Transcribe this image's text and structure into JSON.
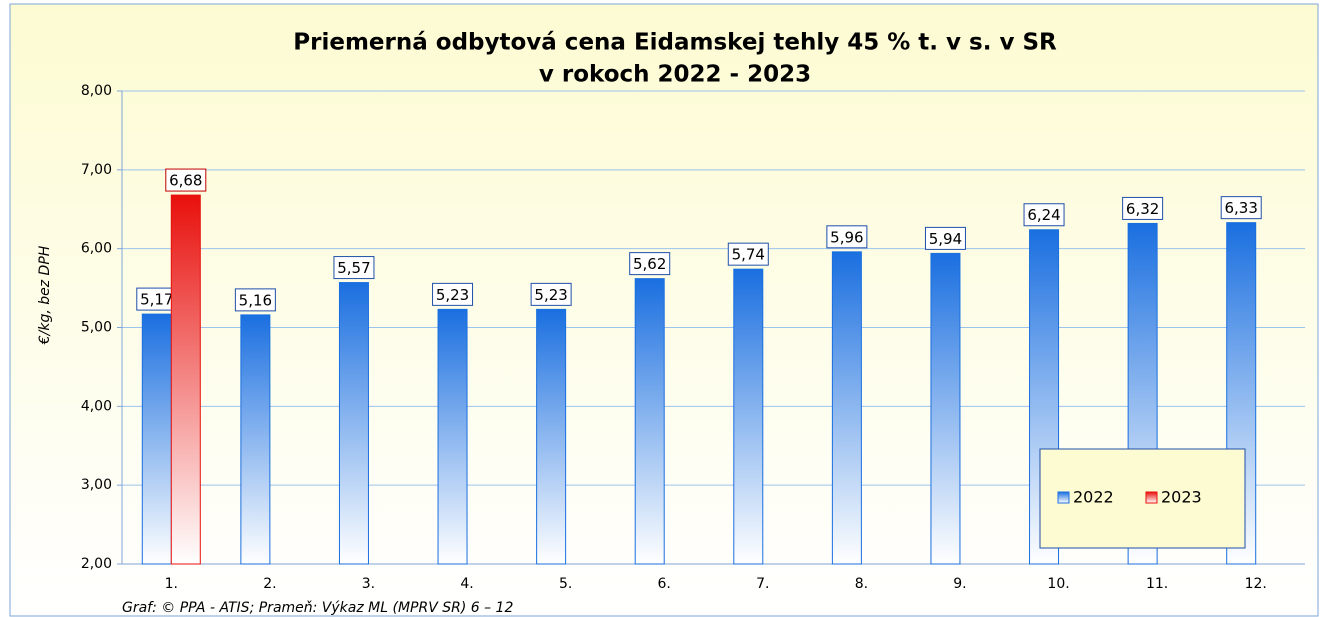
{
  "chart_data": {
    "type": "bar",
    "title": [
      "Priemerná odbytová cena Eidamskej tehly 45 % t. v s. v SR",
      "v rokoch 2022 - 2023"
    ],
    "y_label": "€/kg,  bez DPH",
    "source": "Graf: © PPA - ATIS; Prameň: Výkaz ML (MPRV SR) 6 – 12",
    "categories": [
      "1.",
      "2.",
      "3.",
      "4.",
      "5.",
      "6.",
      "7.",
      "8.",
      "9.",
      "10.",
      "11.",
      "12."
    ],
    "series": [
      {
        "name": "2022",
        "color": "#1a6fe0",
        "values": [
          5.17,
          5.16,
          5.57,
          5.23,
          5.23,
          5.62,
          5.74,
          5.96,
          5.94,
          6.24,
          6.32,
          6.33
        ],
        "value_labels": [
          "5,17",
          "5,16",
          "5,57",
          "5,23",
          "5,23",
          "5,62",
          "5,74",
          "5,96",
          "5,94",
          "6,24",
          "6,32",
          "6,33"
        ]
      },
      {
        "name": "2023",
        "color": "#e8100c",
        "values": [
          6.68,
          null,
          null,
          null,
          null,
          null,
          null,
          null,
          null,
          null,
          null,
          null
        ],
        "value_labels": [
          "6,68",
          null,
          null,
          null,
          null,
          null,
          null,
          null,
          null,
          null,
          null,
          null
        ]
      }
    ],
    "ylim": [
      2,
      8
    ],
    "yticks": [
      {
        "value": 2,
        "label": "2,00"
      },
      {
        "value": 3,
        "label": "3,00"
      },
      {
        "value": 4,
        "label": "4,00"
      },
      {
        "value": 5,
        "label": "5,00"
      },
      {
        "value": 6,
        "label": "6,00"
      },
      {
        "value": 7,
        "label": "7,00"
      },
      {
        "value": 8,
        "label": "8,00"
      }
    ],
    "grid": true,
    "legend": "lower right"
  }
}
